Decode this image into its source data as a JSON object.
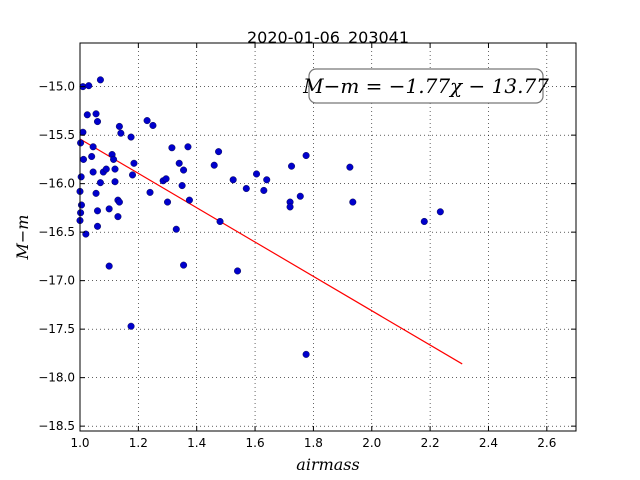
{
  "chart_data": {
    "type": "scatter",
    "title": "2020-01-06_203041",
    "xlabel": "airmass",
    "ylabel": "M−m",
    "xlim": [
      1.0,
      2.7
    ],
    "ylim": [
      -18.55,
      -14.55
    ],
    "xticks": [
      1.0,
      1.2,
      1.4,
      1.6,
      1.8,
      2.0,
      2.2,
      2.4,
      2.6
    ],
    "xtick_labels": [
      "1.0",
      "1.2",
      "1.4",
      "1.6",
      "1.8",
      "2.0",
      "2.2",
      "2.4",
      "2.6"
    ],
    "yticks": [
      -15.0,
      -15.5,
      -16.0,
      -16.5,
      -17.0,
      -17.5,
      -18.0,
      -18.5
    ],
    "ytick_labels": [
      "−15.0",
      "−15.5",
      "−16.0",
      "−16.5",
      "−17.0",
      "−17.5",
      "−18.0",
      "−18.5"
    ],
    "grid": true,
    "annotation": "M−m = −1.77χ − 13.77",
    "fit": {
      "slope": -1.77,
      "intercept": -13.77,
      "x_range": [
        1.0,
        2.31
      ],
      "color": "#ff0000"
    },
    "point_color": "#0000cc",
    "points": [
      [
        1.002,
        -15.58
      ],
      [
        1.01,
        -15.0
      ],
      [
        1.01,
        -15.47
      ],
      [
        1.012,
        -15.75
      ],
      [
        1.004,
        -15.93
      ],
      [
        1.0,
        -16.08
      ],
      [
        1.005,
        -16.22
      ],
      [
        1.002,
        -16.3
      ],
      [
        1.0,
        -16.38
      ],
      [
        1.02,
        -16.52
      ],
      [
        1.03,
        -14.99
      ],
      [
        1.025,
        -15.29
      ],
      [
        1.045,
        -15.62
      ],
      [
        1.04,
        -15.72
      ],
      [
        1.045,
        -15.88
      ],
      [
        1.055,
        -16.1
      ],
      [
        1.06,
        -16.28
      ],
      [
        1.06,
        -16.44
      ],
      [
        1.07,
        -14.93
      ],
      [
        1.055,
        -15.28
      ],
      [
        1.06,
        -15.36
      ],
      [
        1.07,
        -15.99
      ],
      [
        1.08,
        -15.88
      ],
      [
        1.09,
        -15.85
      ],
      [
        1.1,
        -16.26
      ],
      [
        1.1,
        -16.85
      ],
      [
        1.11,
        -15.7
      ],
      [
        1.115,
        -15.75
      ],
      [
        1.12,
        -15.85
      ],
      [
        1.12,
        -15.98
      ],
      [
        1.13,
        -16.17
      ],
      [
        1.13,
        -16.34
      ],
      [
        1.135,
        -15.41
      ],
      [
        1.14,
        -15.48
      ],
      [
        1.135,
        -16.19
      ],
      [
        1.175,
        -15.52
      ],
      [
        1.185,
        -15.79
      ],
      [
        1.18,
        -15.91
      ],
      [
        1.175,
        -17.47
      ],
      [
        1.23,
        -15.35
      ],
      [
        1.25,
        -15.4
      ],
      [
        1.24,
        -16.09
      ],
      [
        1.285,
        -15.97
      ],
      [
        1.295,
        -15.95
      ],
      [
        1.3,
        -16.19
      ],
      [
        1.315,
        -15.63
      ],
      [
        1.33,
        -16.47
      ],
      [
        1.34,
        -15.79
      ],
      [
        1.35,
        -16.02
      ],
      [
        1.355,
        -15.86
      ],
      [
        1.355,
        -16.84
      ],
      [
        1.37,
        -15.62
      ],
      [
        1.375,
        -16.17
      ],
      [
        1.46,
        -15.81
      ],
      [
        1.475,
        -15.67
      ],
      [
        1.48,
        -16.39
      ],
      [
        1.525,
        -15.96
      ],
      [
        1.54,
        -16.9
      ],
      [
        1.57,
        -16.05
      ],
      [
        1.605,
        -15.9
      ],
      [
        1.63,
        -16.07
      ],
      [
        1.64,
        -15.96
      ],
      [
        1.72,
        -16.19
      ],
      [
        1.72,
        -16.24
      ],
      [
        1.725,
        -15.82
      ],
      [
        1.755,
        -16.13
      ],
      [
        1.775,
        -15.71
      ],
      [
        1.775,
        -17.76
      ],
      [
        1.925,
        -15.83
      ],
      [
        1.935,
        -16.19
      ],
      [
        2.18,
        -16.39
      ],
      [
        2.235,
        -16.29
      ]
    ]
  }
}
